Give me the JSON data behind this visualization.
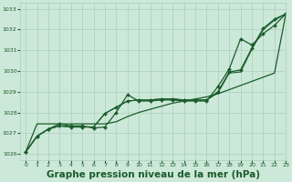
{
  "title": "Graphe pression niveau de la mer (hPa)",
  "bg_color": "#cce8d8",
  "grid_color": "#aacfbc",
  "line_color": "#1a5c2a",
  "xlim": [
    -0.5,
    23
  ],
  "ylim": [
    1025.7,
    1033.3
  ],
  "yticks": [
    1026,
    1027,
    1028,
    1029,
    1030,
    1031,
    1032,
    1033
  ],
  "xticks": [
    0,
    1,
    2,
    3,
    4,
    5,
    6,
    7,
    8,
    9,
    10,
    11,
    12,
    13,
    14,
    15,
    16,
    17,
    18,
    19,
    20,
    21,
    22,
    23
  ],
  "series": [
    {
      "y": [
        1026.1,
        1026.85,
        1027.2,
        1027.35,
        1027.3,
        1027.3,
        1027.3,
        1027.95,
        1028.25,
        1028.55,
        1028.6,
        1028.6,
        1028.65,
        1028.65,
        1028.6,
        1028.6,
        1028.6,
        1029.0,
        1029.95,
        1030.05,
        1031.1,
        1032.05,
        1032.5,
        1032.75
      ],
      "marker": "D",
      "lw": 0.9,
      "ms": 2.0
    },
    {
      "y": [
        1026.1,
        1026.85,
        1027.2,
        1027.45,
        1027.35,
        1027.35,
        1027.25,
        1027.3,
        1028.0,
        1028.85,
        1028.55,
        1028.55,
        1028.6,
        1028.6,
        1028.55,
        1028.55,
        1028.55,
        1029.25,
        1030.1,
        1031.55,
        1031.25,
        1031.8,
        1032.2,
        1032.75
      ],
      "marker": "D",
      "lw": 0.9,
      "ms": 2.0
    },
    {
      "y": [
        1026.1,
        1026.85,
        1027.2,
        1027.35,
        1027.3,
        1027.3,
        1027.3,
        1027.95,
        1028.25,
        1028.55,
        1028.6,
        1028.6,
        1028.65,
        1028.65,
        1028.6,
        1028.6,
        1028.6,
        1028.95,
        1029.9,
        1029.95,
        1031.05,
        1032.0,
        1032.45,
        1032.75
      ],
      "marker": "None",
      "lw": 0.8,
      "ms": 0
    },
    {
      "y": [
        1026.1,
        1027.45,
        1027.45,
        1027.45,
        1027.45,
        1027.45,
        1027.45,
        1027.45,
        1027.55,
        1027.8,
        1028.0,
        1028.15,
        1028.3,
        1028.45,
        1028.55,
        1028.65,
        1028.75,
        1028.9,
        1029.1,
        1029.3,
        1029.5,
        1029.7,
        1029.9,
        1032.75
      ],
      "marker": "None",
      "lw": 0.9,
      "ms": 0
    }
  ],
  "title_fontsize": 7.5
}
